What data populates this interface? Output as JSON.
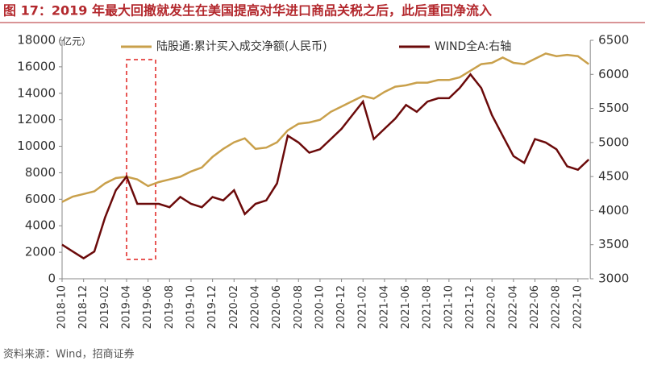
{
  "chart_data": {
    "type": "line",
    "title": "图 17：2019 年最大回撤就发生在美国提高对华进口商品关税之后，此后重回净流入",
    "y_label": "（亿元）",
    "source": "资料来源：Wind，招商证券",
    "x": [
      "2018-10",
      "2018-11",
      "2018-12",
      "2019-01",
      "2019-02",
      "2019-03",
      "2019-04",
      "2019-05",
      "2019-06",
      "2019-07",
      "2019-08",
      "2019-09",
      "2019-10",
      "2019-11",
      "2019-12",
      "2020-01",
      "2020-02",
      "2020-03",
      "2020-04",
      "2020-05",
      "2020-06",
      "2020-07",
      "2020-08",
      "2020-09",
      "2020-10",
      "2020-11",
      "2020-12",
      "2021-01",
      "2021-02",
      "2021-03",
      "2021-04",
      "2021-05",
      "2021-06",
      "2021-07",
      "2021-08",
      "2021-09",
      "2021-10",
      "2021-11",
      "2021-12",
      "2022-01",
      "2022-02",
      "2022-03",
      "2022-04",
      "2022-05",
      "2022-06",
      "2022-07",
      "2022-08",
      "2022-09",
      "2022-10",
      "2022-11"
    ],
    "xticks": [
      "2018-10",
      "2018-12",
      "2019-02",
      "2019-04",
      "2019-06",
      "2019-08",
      "2019-10",
      "2019-12",
      "2020-02",
      "2020-04",
      "2020-06",
      "2020-08",
      "2020-10",
      "2020-12",
      "2021-02",
      "2021-04",
      "2021-06",
      "2021-08",
      "2021-10",
      "2021-12",
      "2022-02",
      "2022-04",
      "2022-06",
      "2022-08",
      "2022-10"
    ],
    "series": [
      {
        "name": "陆股通:累计买入成交净额(人民币)",
        "color": "#C9A04B",
        "values": [
          5800,
          6200,
          6400,
          6600,
          7200,
          7600,
          7700,
          7500,
          7000,
          7300,
          7500,
          7700,
          8100,
          8400,
          9200,
          9800,
          10300,
          10600,
          9800,
          9900,
          10300,
          11200,
          11700,
          11800,
          12000,
          12600,
          13000,
          13400,
          13800,
          13600,
          14100,
          14500,
          14600,
          14800,
          14800,
          15000,
          15000,
          15200,
          15700,
          16200,
          16300,
          16700,
          16300,
          16200,
          16600,
          17000,
          16800,
          16900,
          16800,
          16200
        ]
      },
      {
        "name": "WIND全A:右轴",
        "color": "#6B0A0A",
        "axis": "y2",
        "values": [
          3500,
          3400,
          3300,
          3400,
          3900,
          4300,
          4500,
          4100,
          4100,
          4100,
          4050,
          4200,
          4100,
          4050,
          4200,
          4150,
          4300,
          3950,
          4100,
          4150,
          4400,
          5100,
          5000,
          4850,
          4900,
          5050,
          5200,
          5400,
          5600,
          5050,
          5200,
          5350,
          5550,
          5450,
          5600,
          5650,
          5650,
          5800,
          6000,
          5800,
          5400,
          5100,
          4800,
          4700,
          5050,
          5000,
          4900,
          4650,
          4600,
          4750
        ]
      }
    ],
    "ylim": [
      0,
      18000
    ],
    "yticks": [
      0,
      2000,
      4000,
      6000,
      8000,
      10000,
      12000,
      14000,
      16000,
      18000
    ],
    "y2lim": [
      3000,
      6500
    ],
    "y2ticks": [
      3000,
      3500,
      4000,
      4500,
      5000,
      5500,
      6000,
      6500
    ]
  }
}
